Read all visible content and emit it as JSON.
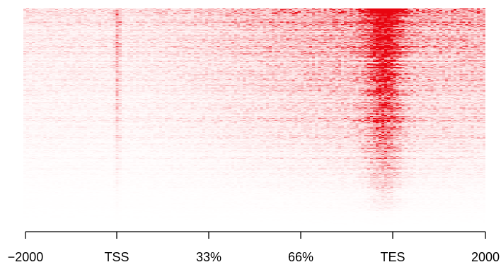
{
  "chart_data": {
    "type": "heatmap",
    "title": "",
    "xlabel": "",
    "ylabel": "",
    "color_scale": {
      "low": "#ffffff",
      "high": "#e8000b"
    },
    "x_ticks": [
      "−2000",
      "TSS",
      "33%",
      "66%",
      "TES",
      "2000"
    ],
    "x_regions": [
      "upstream",
      "gene body",
      "downstream"
    ],
    "rows_sorted_by": "total signal, descending",
    "approx_rows": 300,
    "bins_per_row": 160,
    "profile_peak_at": "TES",
    "secondary_enrichment_at": "TSS",
    "grid": false,
    "legend": "none"
  }
}
